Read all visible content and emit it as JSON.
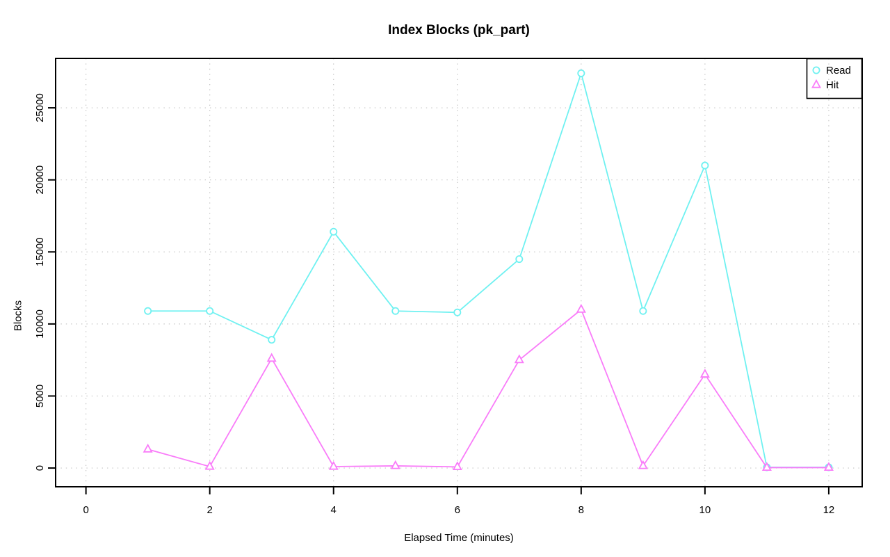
{
  "chart_data": {
    "type": "line",
    "title": "Index Blocks (pk_part)",
    "xlabel": "Elapsed Time (minutes)",
    "ylabel": "Blocks",
    "x": [
      1,
      2,
      3,
      4,
      5,
      6,
      7,
      8,
      9,
      10,
      11,
      12
    ],
    "series": [
      {
        "name": "Read",
        "marker": "circle",
        "color": "#6FF1F1",
        "values": [
          10900,
          10900,
          8900,
          16400,
          10900,
          10800,
          14500,
          27400,
          10900,
          21000,
          50,
          50
        ]
      },
      {
        "name": "Hit",
        "marker": "triangle",
        "color": "#F97CF9",
        "values": [
          1300,
          100,
          7600,
          100,
          150,
          80,
          7500,
          11000,
          150,
          6500,
          30,
          30
        ]
      }
    ],
    "xticks": [
      0,
      2,
      4,
      6,
      8,
      10,
      12
    ],
    "yticks": [
      0,
      5000,
      10000,
      15000,
      20000,
      25000
    ],
    "xlim": [
      -0.49,
      12.54
    ],
    "ylim": [
      -1300,
      28430
    ],
    "grid": true,
    "legend_position": "top-right"
  },
  "legend": {
    "items": [
      {
        "label": "Read"
      },
      {
        "label": "Hit"
      }
    ]
  },
  "colors": {
    "axis": "#000000",
    "grid": "#C4C4C4",
    "background": "#FFFFFF",
    "read": "#6FF1F1",
    "hit": "#F97CF9"
  }
}
